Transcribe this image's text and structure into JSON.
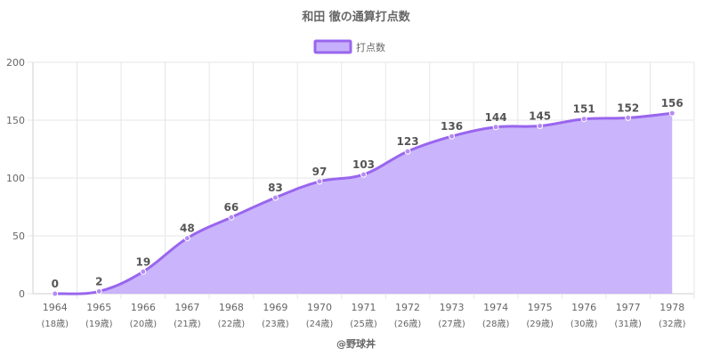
{
  "chart_data": {
    "type": "area",
    "title": "和田 徹の通算打点数",
    "legend": {
      "label": "打点数",
      "position": "top"
    },
    "categories": [
      "1964",
      "1965",
      "1966",
      "1967",
      "1968",
      "1969",
      "1970",
      "1971",
      "1972",
      "1973",
      "1974",
      "1975",
      "1976",
      "1977",
      "1978"
    ],
    "sublabels": [
      "(18歳)",
      "(19歳)",
      "(20歳)",
      "(21歳)",
      "(22歳)",
      "(23歳)",
      "(24歳)",
      "(25歳)",
      "(26歳)",
      "(27歳)",
      "(28歳)",
      "(29歳)",
      "(30歳)",
      "(31歳)",
      "(32歳)"
    ],
    "series": [
      {
        "name": "打点数",
        "values": [
          0,
          2,
          19,
          48,
          66,
          83,
          97,
          103,
          123,
          136,
          144,
          145,
          151,
          152,
          156
        ]
      }
    ],
    "ylim": [
      0,
      200
    ],
    "yticks": [
      0,
      50,
      100,
      150,
      200
    ],
    "grid": true,
    "colors": {
      "line": "#9966ee",
      "fill": "#c7b0fb",
      "point": "#b48cf5"
    },
    "credit": "@野球丼"
  }
}
